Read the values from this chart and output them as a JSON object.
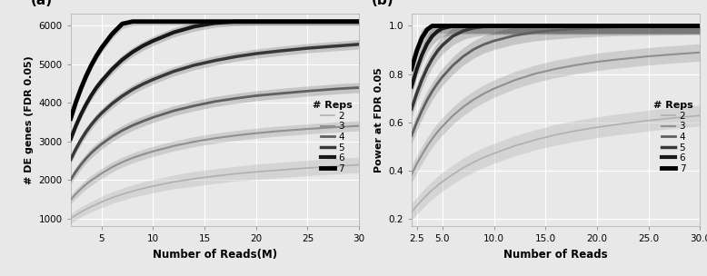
{
  "panel_a": {
    "xlabel": "Number of Reads(M)",
    "ylabel": "# DE genes (FDR 0.05)",
    "xlim": [
      2,
      30
    ],
    "ylim": [
      800,
      6300
    ],
    "xticks": [
      5,
      10,
      15,
      20,
      25,
      30
    ],
    "yticks": [
      1000,
      2000,
      3000,
      4000,
      5000,
      6000
    ],
    "x": [
      2.0,
      2.5,
      3.0,
      3.5,
      4.0,
      4.5,
      5.0,
      6.0,
      7.0,
      8.0,
      9.0,
      10.0,
      12.0,
      14.0,
      16.0,
      18.0,
      20.0,
      22.0,
      25.0,
      28.0,
      30.0
    ],
    "curves": {
      "2": {
        "mean": [
          1000,
          1090,
          1170,
          1240,
          1310,
          1370,
          1430,
          1540,
          1630,
          1710,
          1780,
          1840,
          1950,
          2030,
          2100,
          2160,
          2210,
          2250,
          2310,
          2360,
          2390
        ],
        "lo": [
          880,
          960,
          1040,
          1110,
          1170,
          1230,
          1280,
          1390,
          1470,
          1550,
          1610,
          1670,
          1770,
          1840,
          1910,
          1970,
          2010,
          2050,
          2110,
          2160,
          2190
        ],
        "hi": [
          1120,
          1220,
          1300,
          1370,
          1450,
          1510,
          1580,
          1690,
          1790,
          1870,
          1950,
          2010,
          2130,
          2220,
          2290,
          2350,
          2410,
          2450,
          2510,
          2560,
          2590
        ]
      },
      "3": {
        "mean": [
          1490,
          1640,
          1770,
          1890,
          1990,
          2080,
          2170,
          2330,
          2460,
          2570,
          2660,
          2740,
          2880,
          2990,
          3080,
          3150,
          3210,
          3260,
          3320,
          3370,
          3400
        ],
        "lo": [
          1380,
          1520,
          1650,
          1760,
          1860,
          1950,
          2040,
          2200,
          2330,
          2440,
          2530,
          2610,
          2750,
          2860,
          2950,
          3020,
          3080,
          3130,
          3190,
          3240,
          3270
        ],
        "hi": [
          1600,
          1760,
          1890,
          2020,
          2120,
          2210,
          2300,
          2460,
          2590,
          2700,
          2790,
          2870,
          3010,
          3120,
          3210,
          3280,
          3340,
          3390,
          3450,
          3500,
          3530
        ]
      },
      "4": {
        "mean": [
          2010,
          2220,
          2400,
          2560,
          2700,
          2820,
          2930,
          3120,
          3280,
          3410,
          3520,
          3620,
          3790,
          3920,
          4030,
          4110,
          4180,
          4230,
          4300,
          4360,
          4390
        ],
        "lo": [
          1900,
          2100,
          2280,
          2440,
          2570,
          2690,
          2800,
          2990,
          3150,
          3280,
          3390,
          3490,
          3660,
          3790,
          3900,
          3980,
          4050,
          4100,
          4170,
          4230,
          4260
        ],
        "hi": [
          2120,
          2340,
          2520,
          2680,
          2830,
          2950,
          3060,
          3250,
          3410,
          3540,
          3650,
          3750,
          3920,
          4050,
          4160,
          4240,
          4310,
          4360,
          4430,
          4490,
          4520
        ]
      },
      "5": {
        "mean": [
          2530,
          2800,
          3040,
          3250,
          3430,
          3590,
          3730,
          3970,
          4170,
          4340,
          4480,
          4600,
          4810,
          4970,
          5090,
          5190,
          5270,
          5330,
          5410,
          5470,
          5510
        ],
        "lo": [
          2420,
          2690,
          2920,
          3130,
          3310,
          3470,
          3610,
          3850,
          4050,
          4220,
          4360,
          4480,
          4690,
          4850,
          4970,
          5070,
          5150,
          5210,
          5290,
          5350,
          5390
        ],
        "hi": [
          2640,
          2910,
          3160,
          3370,
          3550,
          3710,
          3850,
          4090,
          4290,
          4460,
          4600,
          4720,
          4930,
          5090,
          5210,
          5310,
          5390,
          5450,
          5530,
          5590,
          5630
        ]
      },
      "6": {
        "mean": [
          3060,
          3400,
          3700,
          3960,
          4190,
          4390,
          4560,
          4860,
          5110,
          5310,
          5470,
          5600,
          5820,
          5970,
          6060,
          6100,
          6100,
          6100,
          6100,
          6100,
          6100
        ],
        "lo": [
          2950,
          3290,
          3580,
          3840,
          4070,
          4270,
          4440,
          4740,
          4990,
          5190,
          5350,
          5480,
          5700,
          5850,
          5950,
          5990,
          6000,
          6000,
          6000,
          6000,
          6000
        ],
        "hi": [
          3170,
          3510,
          3820,
          4080,
          4310,
          4510,
          4680,
          4980,
          5230,
          5430,
          5590,
          5720,
          5940,
          6090,
          6100,
          6100,
          6100,
          6100,
          6100,
          6100,
          6100
        ]
      },
      "7": {
        "mean": [
          3590,
          4010,
          4370,
          4690,
          4970,
          5210,
          5420,
          5770,
          6040,
          6100,
          6100,
          6100,
          6100,
          6100,
          6100,
          6100,
          6100,
          6100,
          6100,
          6100,
          6100
        ],
        "lo": [
          3480,
          3900,
          4250,
          4570,
          4850,
          5090,
          5300,
          5650,
          5920,
          5990,
          6000,
          6000,
          6000,
          6000,
          6000,
          6000,
          6000,
          6000,
          6000,
          6000,
          6000
        ],
        "hi": [
          3700,
          4120,
          4490,
          4810,
          5090,
          5330,
          5540,
          5890,
          6100,
          6100,
          6100,
          6100,
          6100,
          6100,
          6100,
          6100,
          6100,
          6100,
          6100,
          6100,
          6100
        ]
      }
    },
    "colors": {
      "2": "#b0b0b0",
      "3": "#909090",
      "4": "#606060",
      "5": "#383838",
      "6": "#181818",
      "7": "#000000"
    },
    "linewidths": {
      "2": 1.2,
      "3": 1.5,
      "4": 2.0,
      "5": 2.5,
      "6": 3.0,
      "7": 3.5
    },
    "band_alphas": {
      "2": 0.35,
      "3": 0.3,
      "4": 0.25,
      "5": 0.2,
      "6": 0.18,
      "7": 0.15
    }
  },
  "panel_b": {
    "xlabel": "Number of Reads",
    "ylabel": "Power at FDR 0.05",
    "xlim": [
      2,
      30
    ],
    "ylim": [
      0.17,
      1.05
    ],
    "xticks": [
      2.5,
      5.0,
      10.0,
      15.0,
      20.0,
      25.0,
      30.0
    ],
    "yticks": [
      0.2,
      0.4,
      0.6,
      0.8,
      1.0
    ],
    "x": [
      2.0,
      2.5,
      3.0,
      3.5,
      4.0,
      4.5,
      5.0,
      6.0,
      7.0,
      8.0,
      9.0,
      10.0,
      12.0,
      14.0,
      16.0,
      18.0,
      20.0,
      22.0,
      25.0,
      28.0,
      30.0
    ],
    "curves": {
      "2": {
        "mean": [
          0.23,
          0.255,
          0.278,
          0.3,
          0.32,
          0.338,
          0.355,
          0.385,
          0.412,
          0.435,
          0.455,
          0.472,
          0.503,
          0.528,
          0.549,
          0.566,
          0.58,
          0.592,
          0.608,
          0.621,
          0.629
        ],
        "lo": [
          0.195,
          0.22,
          0.242,
          0.263,
          0.282,
          0.3,
          0.316,
          0.346,
          0.372,
          0.395,
          0.414,
          0.431,
          0.461,
          0.486,
          0.506,
          0.523,
          0.537,
          0.549,
          0.565,
          0.578,
          0.586
        ],
        "hi": [
          0.265,
          0.29,
          0.314,
          0.337,
          0.358,
          0.376,
          0.394,
          0.424,
          0.452,
          0.475,
          0.496,
          0.513,
          0.545,
          0.57,
          0.592,
          0.609,
          0.623,
          0.635,
          0.651,
          0.664,
          0.672
        ]
      },
      "3": {
        "mean": [
          0.385,
          0.428,
          0.466,
          0.501,
          0.532,
          0.56,
          0.584,
          0.628,
          0.664,
          0.694,
          0.719,
          0.74,
          0.775,
          0.802,
          0.822,
          0.838,
          0.851,
          0.861,
          0.874,
          0.884,
          0.89
        ],
        "lo": [
          0.35,
          0.392,
          0.43,
          0.465,
          0.496,
          0.524,
          0.548,
          0.592,
          0.628,
          0.658,
          0.683,
          0.704,
          0.739,
          0.766,
          0.786,
          0.802,
          0.815,
          0.825,
          0.838,
          0.848,
          0.854
        ],
        "hi": [
          0.42,
          0.464,
          0.502,
          0.537,
          0.568,
          0.596,
          0.62,
          0.664,
          0.7,
          0.73,
          0.755,
          0.776,
          0.811,
          0.838,
          0.858,
          0.874,
          0.887,
          0.897,
          0.91,
          0.92,
          0.926
        ]
      },
      "4": {
        "mean": [
          0.545,
          0.6,
          0.649,
          0.692,
          0.729,
          0.761,
          0.789,
          0.836,
          0.873,
          0.902,
          0.923,
          0.938,
          0.96,
          0.974,
          0.982,
          0.988,
          0.992,
          0.995,
          0.997,
          0.999,
          1.0
        ],
        "lo": [
          0.51,
          0.564,
          0.613,
          0.656,
          0.693,
          0.725,
          0.753,
          0.8,
          0.837,
          0.866,
          0.887,
          0.902,
          0.924,
          0.938,
          0.946,
          0.952,
          0.956,
          0.959,
          0.961,
          0.963,
          0.964
        ],
        "hi": [
          0.58,
          0.636,
          0.685,
          0.728,
          0.765,
          0.797,
          0.825,
          0.872,
          0.909,
          0.938,
          0.959,
          0.974,
          0.996,
          1.0,
          1.0,
          1.0,
          1.0,
          1.0,
          1.0,
          1.0,
          1.0
        ]
      },
      "5": {
        "mean": [
          0.655,
          0.72,
          0.776,
          0.824,
          0.863,
          0.895,
          0.92,
          0.957,
          0.979,
          0.991,
          0.997,
          0.999,
          1.0,
          1.0,
          1.0,
          1.0,
          1.0,
          1.0,
          1.0,
          1.0,
          1.0
        ],
        "lo": [
          0.62,
          0.684,
          0.74,
          0.788,
          0.827,
          0.859,
          0.884,
          0.921,
          0.943,
          0.955,
          0.961,
          0.963,
          0.964,
          0.965,
          0.965,
          0.965,
          0.965,
          0.965,
          0.965,
          0.965,
          0.965
        ],
        "hi": [
          0.69,
          0.756,
          0.812,
          0.86,
          0.899,
          0.931,
          0.956,
          0.993,
          1.0,
          1.0,
          1.0,
          1.0,
          1.0,
          1.0,
          1.0,
          1.0,
          1.0,
          1.0,
          1.0,
          1.0,
          1.0
        ]
      },
      "6": {
        "mean": [
          0.748,
          0.82,
          0.879,
          0.925,
          0.957,
          0.977,
          0.99,
          1.0,
          1.0,
          1.0,
          1.0,
          1.0,
          1.0,
          1.0,
          1.0,
          1.0,
          1.0,
          1.0,
          1.0,
          1.0,
          1.0
        ],
        "lo": [
          0.713,
          0.784,
          0.843,
          0.889,
          0.921,
          0.941,
          0.954,
          0.964,
          0.966,
          0.967,
          0.967,
          0.967,
          0.967,
          0.967,
          0.967,
          0.967,
          0.967,
          0.967,
          0.967,
          0.967,
          0.967
        ],
        "hi": [
          0.783,
          0.856,
          0.915,
          0.961,
          0.993,
          1.0,
          1.0,
          1.0,
          1.0,
          1.0,
          1.0,
          1.0,
          1.0,
          1.0,
          1.0,
          1.0,
          1.0,
          1.0,
          1.0,
          1.0,
          1.0
        ]
      },
      "7": {
        "mean": [
          0.822,
          0.896,
          0.95,
          0.984,
          1.0,
          1.0,
          1.0,
          1.0,
          1.0,
          1.0,
          1.0,
          1.0,
          1.0,
          1.0,
          1.0,
          1.0,
          1.0,
          1.0,
          1.0,
          1.0,
          1.0
        ],
        "lo": [
          0.787,
          0.86,
          0.914,
          0.948,
          0.966,
          0.969,
          0.97,
          0.97,
          0.97,
          0.97,
          0.97,
          0.97,
          0.97,
          0.97,
          0.97,
          0.97,
          0.97,
          0.97,
          0.97,
          0.97,
          0.97
        ],
        "hi": [
          0.857,
          0.932,
          0.986,
          1.0,
          1.0,
          1.0,
          1.0,
          1.0,
          1.0,
          1.0,
          1.0,
          1.0,
          1.0,
          1.0,
          1.0,
          1.0,
          1.0,
          1.0,
          1.0,
          1.0,
          1.0
        ]
      }
    },
    "colors": {
      "2": "#b0b0b0",
      "3": "#909090",
      "4": "#606060",
      "5": "#383838",
      "6": "#181818",
      "7": "#000000"
    },
    "linewidths": {
      "2": 1.2,
      "3": 1.5,
      "4": 2.0,
      "5": 2.5,
      "6": 3.0,
      "7": 3.5
    },
    "band_alphas": {
      "2": 0.35,
      "3": 0.3,
      "4": 0.25,
      "5": 0.2,
      "6": 0.18,
      "7": 0.15
    }
  },
  "legend_title": "# Reps",
  "legend_labels": [
    "2",
    "3",
    "4",
    "5",
    "6",
    "7"
  ],
  "bg_color": "#e8e8e8",
  "grid_color": "#ffffff",
  "fig_bg": "#e8e8e8"
}
